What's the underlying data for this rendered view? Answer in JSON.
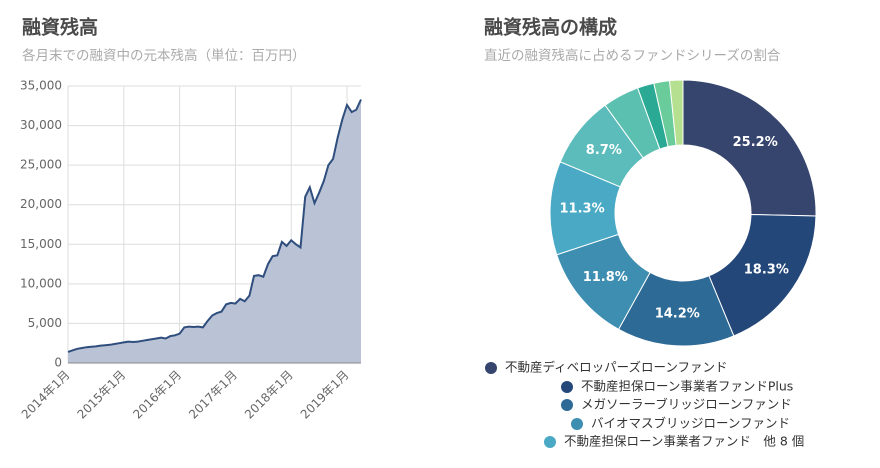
{
  "chart_data": [
    {
      "type": "area",
      "title": "融資残高",
      "subtitle": "各月末での融資中の元本残高（単位：百万円）",
      "x": [
        "2014-01",
        "2014-02",
        "2014-03",
        "2014-04",
        "2014-05",
        "2014-06",
        "2014-07",
        "2014-08",
        "2014-09",
        "2014-10",
        "2014-11",
        "2014-12",
        "2015-01",
        "2015-02",
        "2015-03",
        "2015-04",
        "2015-05",
        "2015-06",
        "2015-07",
        "2015-08",
        "2015-09",
        "2015-10",
        "2015-11",
        "2015-12",
        "2016-01",
        "2016-02",
        "2016-03",
        "2016-04",
        "2016-05",
        "2016-06",
        "2016-07",
        "2016-08",
        "2016-09",
        "2016-10",
        "2016-11",
        "2016-12",
        "2017-01",
        "2017-02",
        "2017-03",
        "2017-04",
        "2017-05",
        "2017-06",
        "2017-07",
        "2017-08",
        "2017-09",
        "2017-10",
        "2017-11",
        "2017-12",
        "2018-01",
        "2018-02",
        "2018-03",
        "2018-04",
        "2018-05",
        "2018-06",
        "2018-07",
        "2018-08",
        "2018-09",
        "2018-10",
        "2018-11",
        "2018-12",
        "2019-01",
        "2019-02",
        "2019-03",
        "2019-04"
      ],
      "values": [
        1400,
        1600,
        1800,
        1900,
        2000,
        2050,
        2100,
        2200,
        2250,
        2300,
        2400,
        2500,
        2600,
        2700,
        2650,
        2700,
        2800,
        2900,
        3000,
        3100,
        3200,
        3100,
        3400,
        3500,
        3700,
        4500,
        4600,
        4550,
        4600,
        4500,
        5300,
        6000,
        6300,
        6500,
        7400,
        7600,
        7500,
        8100,
        7800,
        8500,
        11000,
        11100,
        10900,
        12500,
        13500,
        13600,
        15300,
        14800,
        15500,
        15000,
        14600,
        21000,
        22200,
        20200,
        21500,
        23000,
        25000,
        25800,
        28500,
        30800,
        32600,
        31700,
        32000,
        33300
      ],
      "color": "#2f4e7e",
      "fill": "#b9c3d5",
      "xlim": [
        "2014-01",
        "2019-04"
      ],
      "xticks": [
        {
          "value": "2014-01",
          "label": "2014年1月"
        },
        {
          "value": "2015-01",
          "label": "2015年1月"
        },
        {
          "value": "2016-01",
          "label": "2016年1月"
        },
        {
          "value": "2017-01",
          "label": "2017年1月"
        },
        {
          "value": "2018-01",
          "label": "2018年1月"
        },
        {
          "value": "2019-01",
          "label": "2019年1月"
        }
      ],
      "ylim": [
        0,
        35000
      ],
      "yticks": [
        0,
        {
          "value": 5000,
          "label": "5,000"
        },
        {
          "value": 10000,
          "label": "10,000"
        },
        {
          "value": 15000,
          "label": "15,000"
        },
        {
          "value": 20000,
          "label": "20,000"
        },
        {
          "value": 25000,
          "label": "25,000"
        },
        {
          "value": 30000,
          "label": "30,000"
        },
        {
          "value": 35000,
          "label": "35,000"
        }
      ],
      "grid": true
    },
    {
      "type": "donut",
      "title": "融資残高の構成",
      "subtitle": "直近の融資残高に占めるファンドシリーズの割合",
      "categories": [
        "不動産ディベロッパーズローンファンド",
        "不動産担保ローン事業者ファンドPlus",
        "メガソーラーブリッジローンファンド",
        "バイオマスブリッジローンファンド",
        "不動産担保ローン事業者ファンド　他 8 個",
        null,
        null,
        null,
        null,
        null
      ],
      "values": [
        25.2,
        18.3,
        14.2,
        11.8,
        11.3,
        8.7,
        4.4,
        2.0,
        1.9,
        1.6
      ],
      "value_labels": [
        "25.2%",
        "18.3%",
        "14.2%",
        "11.8%",
        "11.3%",
        "8.7%",
        null,
        null,
        null,
        null
      ],
      "colors": [
        "#36456e",
        "#24477a",
        "#2e6a96",
        "#3d8eb0",
        "#4aaac5",
        "#5bbcbb",
        "#5cc0b0",
        "#2aaa94",
        "#6acc9a",
        "#b5e08f"
      ]
    }
  ]
}
